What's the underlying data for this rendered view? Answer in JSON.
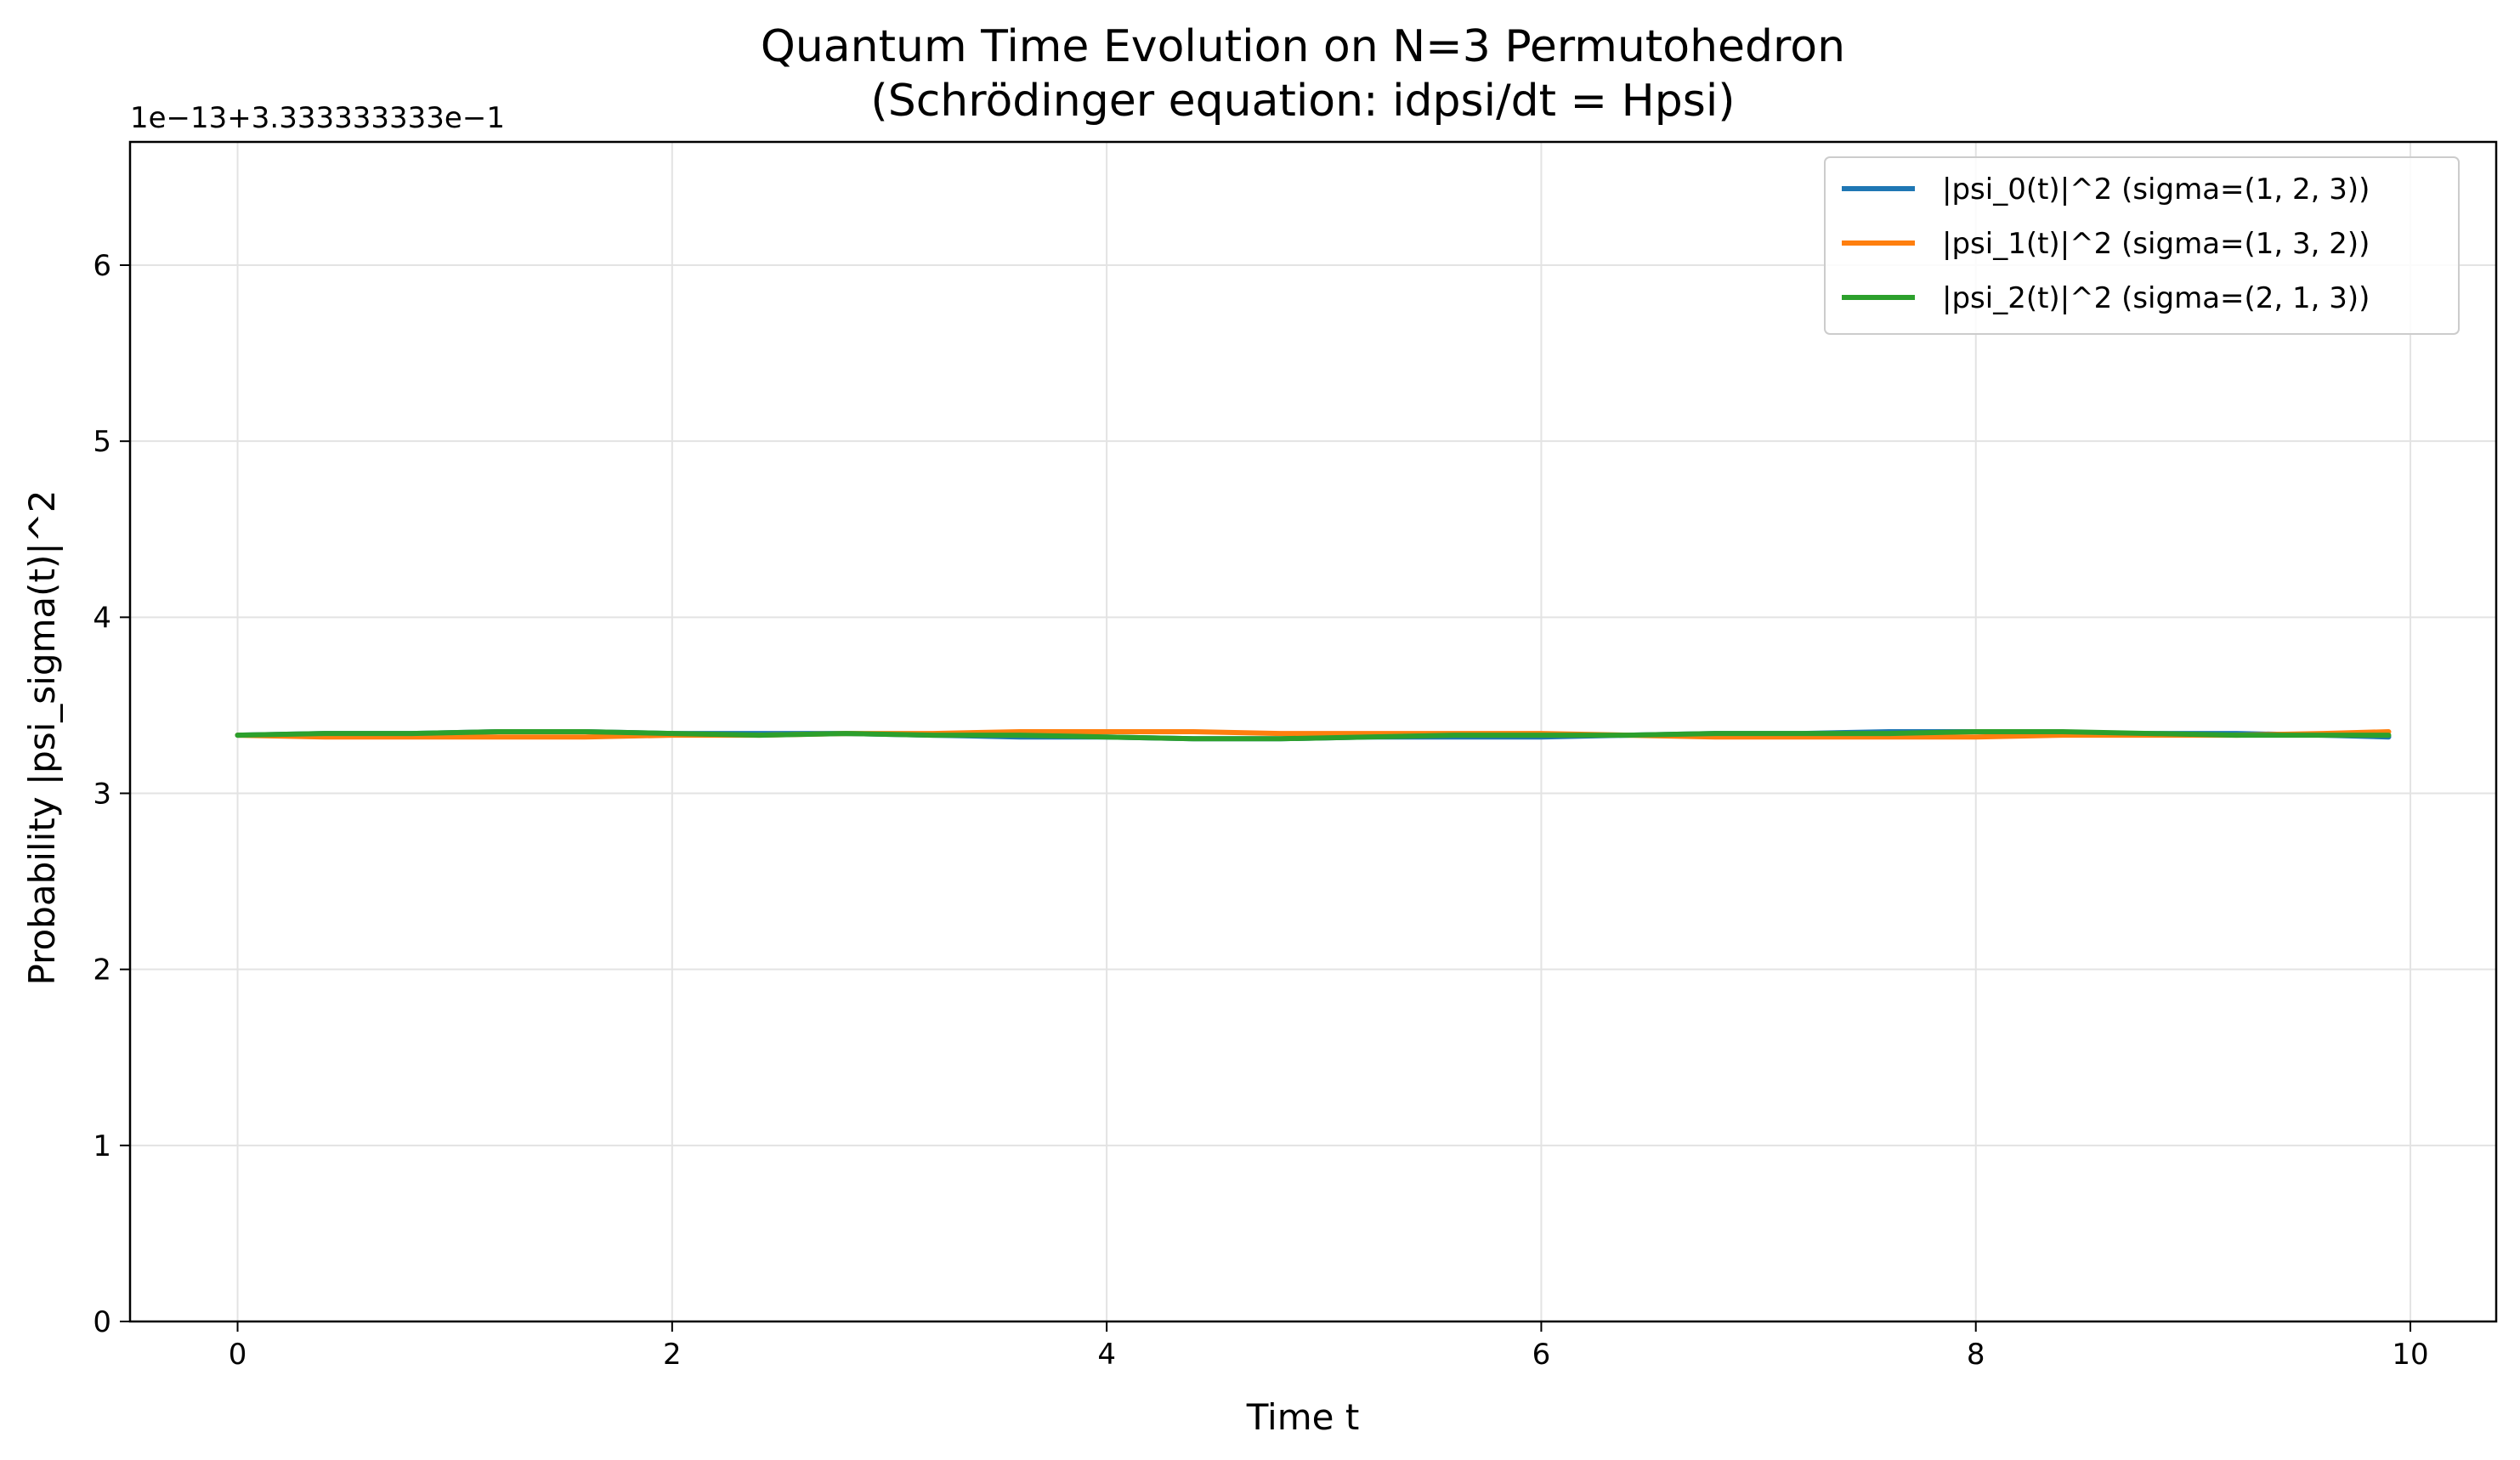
{
  "chart_data": {
    "type": "line",
    "title": "Quantum Time Evolution on N=3 Permutohedron",
    "subtitle": "(Schrödinger equation: idpsi/dt = Hpsi)",
    "xlabel": "Time t",
    "ylabel": "Probability |psi_sigma(t)|^2",
    "y_offset_text": "1e−13+3.333333333e−1",
    "xlim": [
      -0.495,
      10.395
    ],
    "ylim": [
      0,
      6.7
    ],
    "x_ticks": [
      0,
      2,
      4,
      6,
      8,
      10
    ],
    "x_tick_labels": [
      "0",
      "2",
      "4",
      "6",
      "8",
      "10"
    ],
    "y_ticks": [
      0,
      1,
      2,
      3,
      4,
      5,
      6
    ],
    "y_tick_labels": [
      "0",
      "1",
      "2",
      "3",
      "4",
      "5",
      "6"
    ],
    "grid": true,
    "legend_position": "top-right",
    "x": [
      0,
      0.4,
      0.8,
      1.2,
      1.6,
      2.0,
      2.4,
      2.8,
      3.2,
      3.6,
      4.0,
      4.4,
      4.8,
      5.2,
      5.6,
      6.0,
      6.4,
      6.8,
      7.2,
      7.6,
      8.0,
      8.4,
      8.8,
      9.2,
      9.6,
      9.9
    ],
    "series": [
      {
        "name": "|psi_0(t)|^2 (sigma=(1, 2, 3))",
        "color": "#1f77b4",
        "values": [
          3.33,
          3.34,
          3.34,
          3.35,
          3.35,
          3.34,
          3.34,
          3.34,
          3.33,
          3.32,
          3.32,
          3.31,
          3.31,
          3.32,
          3.32,
          3.32,
          3.33,
          3.34,
          3.34,
          3.35,
          3.35,
          3.34,
          3.34,
          3.34,
          3.33,
          3.32
        ]
      },
      {
        "name": "|psi_1(t)|^2 (sigma=(1, 3, 2))",
        "color": "#ff7f0e",
        "values": [
          3.33,
          3.32,
          3.32,
          3.32,
          3.32,
          3.33,
          3.33,
          3.34,
          3.34,
          3.35,
          3.35,
          3.35,
          3.34,
          3.34,
          3.34,
          3.34,
          3.33,
          3.32,
          3.32,
          3.32,
          3.32,
          3.33,
          3.33,
          3.33,
          3.34,
          3.35
        ]
      },
      {
        "name": "|psi_2(t)|^2 (sigma=(2, 1, 3))",
        "color": "#2ca02c",
        "values": [
          3.33,
          3.34,
          3.34,
          3.35,
          3.35,
          3.34,
          3.33,
          3.34,
          3.33,
          3.33,
          3.32,
          3.31,
          3.31,
          3.32,
          3.33,
          3.33,
          3.33,
          3.34,
          3.34,
          3.34,
          3.35,
          3.35,
          3.34,
          3.33,
          3.33,
          3.33
        ]
      }
    ]
  }
}
